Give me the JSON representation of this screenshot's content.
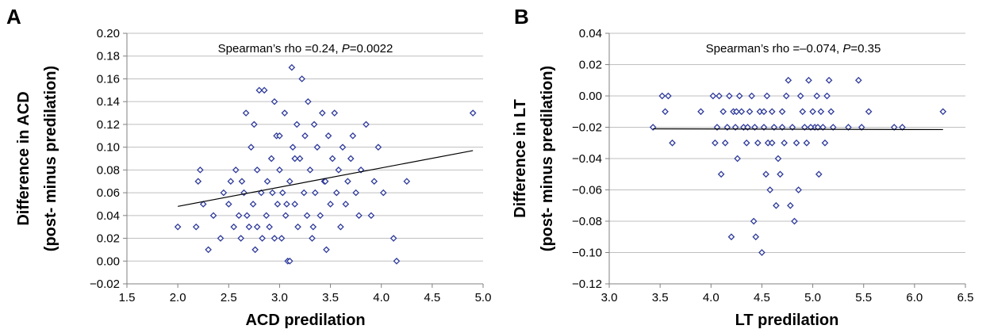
{
  "chart_data": [
    {
      "panel": "A",
      "type": "scatter",
      "xlabel": "ACD predilation",
      "ylabel_line1": "Difference in ACD",
      "ylabel_line2": "(post- minus predilation)",
      "xlim": [
        1.5,
        5.0
      ],
      "ylim": [
        -0.02,
        0.2
      ],
      "xticks": [
        "1.5",
        "2.0",
        "2.5",
        "3.0",
        "3.5",
        "4.0",
        "4.5",
        "5.0"
      ],
      "yticks": [
        "−0.02",
        "0.00",
        "0.02",
        "0.04",
        "0.06",
        "0.08",
        "0.10",
        "0.12",
        "0.14",
        "0.16",
        "0.18",
        "0.20"
      ],
      "annotation_text": "Spearman’s rho =0.24, ",
      "annotation_p": "P",
      "annotation_value": "=0.0022",
      "grid": true,
      "trendline": {
        "x": [
          2.0,
          4.9
        ],
        "y": [
          0.048,
          0.097
        ]
      },
      "points": [
        [
          2.0,
          0.03
        ],
        [
          2.18,
          0.03
        ],
        [
          2.2,
          0.07
        ],
        [
          2.22,
          0.08
        ],
        [
          2.25,
          0.05
        ],
        [
          2.3,
          0.01
        ],
        [
          2.35,
          0.04
        ],
        [
          2.42,
          0.02
        ],
        [
          2.45,
          0.06
        ],
        [
          2.5,
          0.05
        ],
        [
          2.52,
          0.07
        ],
        [
          2.55,
          0.03
        ],
        [
          2.57,
          0.08
        ],
        [
          2.6,
          0.04
        ],
        [
          2.62,
          0.02
        ],
        [
          2.63,
          0.07
        ],
        [
          2.65,
          0.06
        ],
        [
          2.67,
          0.13
        ],
        [
          2.7,
          0.03
        ],
        [
          2.72,
          0.1
        ],
        [
          2.74,
          0.05
        ],
        [
          2.75,
          0.12
        ],
        [
          2.76,
          0.01
        ],
        [
          2.78,
          0.08
        ],
        [
          2.8,
          0.15
        ],
        [
          2.82,
          0.06
        ],
        [
          2.83,
          0.02
        ],
        [
          2.85,
          0.15
        ],
        [
          2.87,
          0.04
        ],
        [
          2.88,
          0.07
        ],
        [
          2.9,
          0.03
        ],
        [
          2.92,
          0.09
        ],
        [
          2.93,
          0.06
        ],
        [
          2.95,
          0.14
        ],
        [
          2.97,
          0.11
        ],
        [
          2.98,
          0.05
        ],
        [
          3.0,
          0.08
        ],
        [
          3.02,
          0.02
        ],
        [
          3.03,
          0.06
        ],
        [
          3.05,
          0.13
        ],
        [
          3.06,
          0.04
        ],
        [
          3.08,
          0.0
        ],
        [
          3.1,
          0.0
        ],
        [
          3.1,
          0.07
        ],
        [
          3.12,
          0.17
        ],
        [
          3.13,
          0.1
        ],
        [
          3.15,
          0.05
        ],
        [
          3.17,
          0.12
        ],
        [
          3.18,
          0.03
        ],
        [
          3.2,
          0.09
        ],
        [
          3.22,
          0.16
        ],
        [
          3.24,
          0.06
        ],
        [
          3.25,
          0.11
        ],
        [
          3.27,
          0.04
        ],
        [
          3.28,
          0.14
        ],
        [
          3.3,
          0.08
        ],
        [
          3.32,
          0.02
        ],
        [
          3.34,
          0.12
        ],
        [
          3.35,
          0.06
        ],
        [
          3.37,
          0.1
        ],
        [
          3.4,
          0.04
        ],
        [
          3.42,
          0.13
        ],
        [
          3.44,
          0.07
        ],
        [
          3.46,
          0.01
        ],
        [
          3.48,
          0.11
        ],
        [
          3.5,
          0.05
        ],
        [
          3.52,
          0.09
        ],
        [
          3.54,
          0.13
        ],
        [
          3.56,
          0.06
        ],
        [
          3.58,
          0.08
        ],
        [
          3.6,
          0.03
        ],
        [
          3.62,
          0.1
        ],
        [
          3.65,
          0.05
        ],
        [
          3.67,
          0.07
        ],
        [
          3.7,
          0.09
        ],
        [
          3.72,
          0.11
        ],
        [
          3.75,
          0.06
        ],
        [
          3.78,
          0.04
        ],
        [
          3.8,
          0.08
        ],
        [
          3.85,
          0.12
        ],
        [
          3.9,
          0.04
        ],
        [
          3.93,
          0.07
        ],
        [
          3.97,
          0.1
        ],
        [
          4.02,
          0.06
        ],
        [
          4.12,
          0.02
        ],
        [
          4.15,
          0.0
        ],
        [
          4.25,
          0.07
        ],
        [
          4.9,
          0.13
        ],
        [
          2.78,
          0.03
        ],
        [
          2.95,
          0.02
        ],
        [
          3.07,
          0.05
        ],
        [
          3.33,
          0.03
        ],
        [
          3.45,
          0.07
        ],
        [
          2.68,
          0.04
        ],
        [
          3.15,
          0.09
        ],
        [
          3.0,
          0.11
        ]
      ]
    },
    {
      "panel": "B",
      "type": "scatter",
      "xlabel": "LT predilation",
      "ylabel_line1": "Difference in LT",
      "ylabel_line2": "(post- minus predilation)",
      "xlim": [
        3.0,
        6.5
      ],
      "ylim": [
        -0.12,
        0.04
      ],
      "xticks": [
        "3.0",
        "3.5",
        "4.0",
        "4.5",
        "5.0",
        "5.5",
        "6.0",
        "6.5"
      ],
      "yticks": [
        "−0.12",
        "−0.10",
        "−0.08",
        "−0.06",
        "−0.04",
        "−0.02",
        "0.00",
        "0.02",
        "0.04"
      ],
      "annotation_text": "Spearman’s rho =–0.074, ",
      "annotation_p": "P",
      "annotation_value": "=0.35",
      "grid": true,
      "trendline": {
        "x": [
          3.43,
          6.28
        ],
        "y": [
          -0.021,
          -0.0215
        ]
      },
      "points": [
        [
          3.43,
          -0.02
        ],
        [
          3.52,
          0.0
        ],
        [
          3.55,
          -0.01
        ],
        [
          3.58,
          0.0
        ],
        [
          3.62,
          -0.03
        ],
        [
          3.9,
          -0.01
        ],
        [
          4.02,
          0.0
        ],
        [
          4.04,
          -0.03
        ],
        [
          4.06,
          -0.02
        ],
        [
          4.08,
          0.0
        ],
        [
          4.1,
          -0.05
        ],
        [
          4.12,
          -0.01
        ],
        [
          4.14,
          -0.03
        ],
        [
          4.16,
          -0.02
        ],
        [
          4.18,
          0.0
        ],
        [
          4.2,
          -0.09
        ],
        [
          4.22,
          -0.01
        ],
        [
          4.24,
          -0.02
        ],
        [
          4.26,
          -0.04
        ],
        [
          4.28,
          0.0
        ],
        [
          4.3,
          -0.01
        ],
        [
          4.32,
          -0.02
        ],
        [
          4.35,
          -0.03
        ],
        [
          4.38,
          -0.01
        ],
        [
          4.4,
          0.0
        ],
        [
          4.42,
          -0.08
        ],
        [
          4.43,
          -0.02
        ],
        [
          4.44,
          -0.09
        ],
        [
          4.46,
          -0.03
        ],
        [
          4.48,
          -0.01
        ],
        [
          4.5,
          -0.1
        ],
        [
          4.52,
          -0.02
        ],
        [
          4.54,
          -0.05
        ],
        [
          4.55,
          0.0
        ],
        [
          4.56,
          -0.03
        ],
        [
          4.58,
          -0.06
        ],
        [
          4.6,
          -0.01
        ],
        [
          4.62,
          -0.02
        ],
        [
          4.64,
          -0.07
        ],
        [
          4.66,
          -0.04
        ],
        [
          4.68,
          -0.05
        ],
        [
          4.7,
          -0.01
        ],
        [
          4.72,
          -0.03
        ],
        [
          4.74,
          0.0
        ],
        [
          4.76,
          0.01
        ],
        [
          4.78,
          -0.07
        ],
        [
          4.8,
          -0.02
        ],
        [
          4.82,
          -0.08
        ],
        [
          4.84,
          -0.03
        ],
        [
          4.86,
          -0.06
        ],
        [
          4.88,
          0.0
        ],
        [
          4.9,
          -0.01
        ],
        [
          4.92,
          -0.02
        ],
        [
          4.94,
          -0.03
        ],
        [
          4.96,
          0.01
        ],
        [
          5.0,
          -0.01
        ],
        [
          5.02,
          -0.02
        ],
        [
          5.04,
          0.0
        ],
        [
          5.06,
          -0.05
        ],
        [
          5.08,
          -0.01
        ],
        [
          5.1,
          -0.02
        ],
        [
          5.12,
          -0.03
        ],
        [
          5.14,
          0.0
        ],
        [
          5.16,
          0.01
        ],
        [
          5.18,
          -0.01
        ],
        [
          5.2,
          -0.02
        ],
        [
          5.35,
          -0.02
        ],
        [
          5.45,
          0.01
        ],
        [
          5.48,
          -0.02
        ],
        [
          5.55,
          -0.01
        ],
        [
          5.8,
          -0.02
        ],
        [
          5.88,
          -0.02
        ],
        [
          6.28,
          -0.01
        ],
        [
          4.36,
          -0.02
        ],
        [
          4.6,
          -0.03
        ],
        [
          4.7,
          -0.02
        ],
        [
          4.98,
          -0.02
        ],
        [
          5.05,
          -0.02
        ],
        [
          4.25,
          -0.01
        ],
        [
          4.52,
          -0.01
        ]
      ]
    }
  ]
}
